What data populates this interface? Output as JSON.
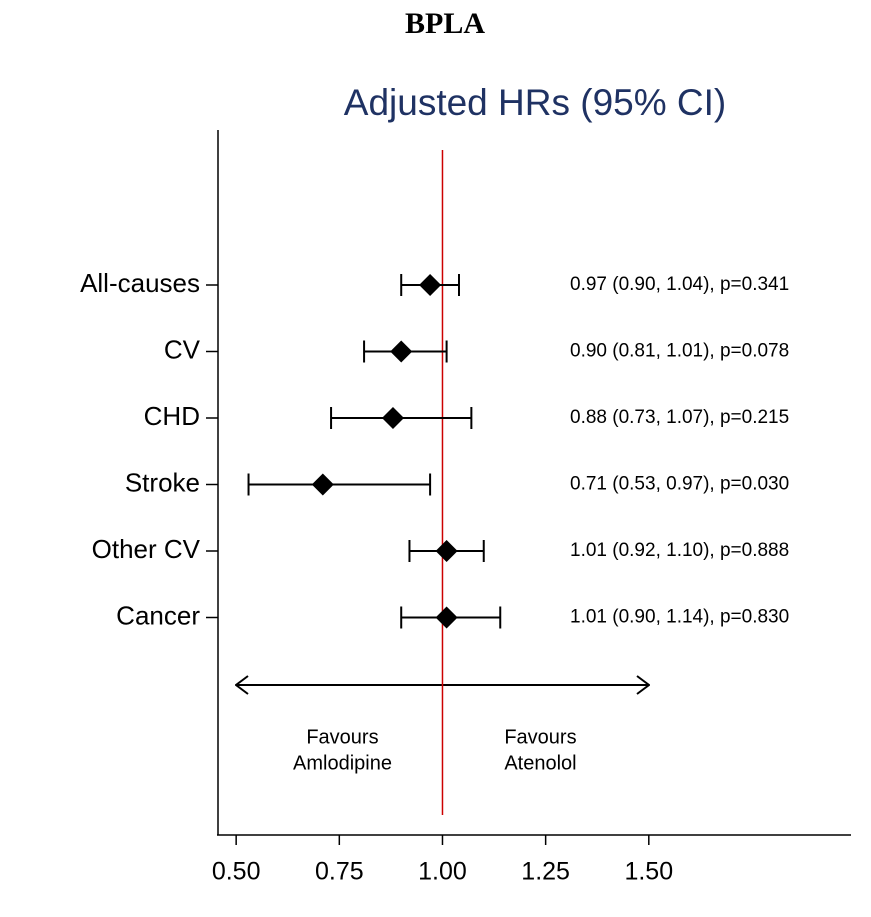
{
  "header": {
    "title": "BPLA"
  },
  "chart_data": {
    "type": "forest",
    "title": "Adjusted HRs (95% CI)",
    "categories": [
      "All-causes",
      "CV",
      "CHD",
      "Stroke",
      "Other CV",
      "Cancer"
    ],
    "values": [
      0.97,
      0.9,
      0.88,
      0.71,
      1.01,
      1.01
    ],
    "lower": [
      0.9,
      0.81,
      0.73,
      0.53,
      0.92,
      0.9
    ],
    "upper": [
      1.04,
      1.01,
      1.07,
      0.97,
      1.1,
      1.14
    ],
    "value_labels": [
      "0.97 (0.90, 1.04), p=0.341",
      "0.90 (0.81, 1.01), p=0.078",
      "0.88 (0.73, 1.07), p=0.215",
      "0.71 (0.53, 0.97), p=0.030",
      "1.01 (0.92, 1.10), p=0.888",
      "1.01 (0.90, 1.14), p=0.830"
    ],
    "color": "#000000",
    "reference_line": {
      "value": 1,
      "color": "#cc0000"
    },
    "annotations": [
      [
        "Favours",
        "Amlodipine"
      ],
      [
        "Favours",
        "Atenolol"
      ]
    ],
    "xlim": [
      0.456,
      1.99
    ],
    "xticks": [
      {
        "value": 0.5,
        "label": "0.50"
      },
      {
        "value": 0.75,
        "label": "0.75"
      },
      {
        "value": 1,
        "label": "1.00"
      },
      {
        "value": 1.25,
        "label": "1.25"
      },
      {
        "value": 1.5,
        "label": "1.50"
      }
    ]
  }
}
